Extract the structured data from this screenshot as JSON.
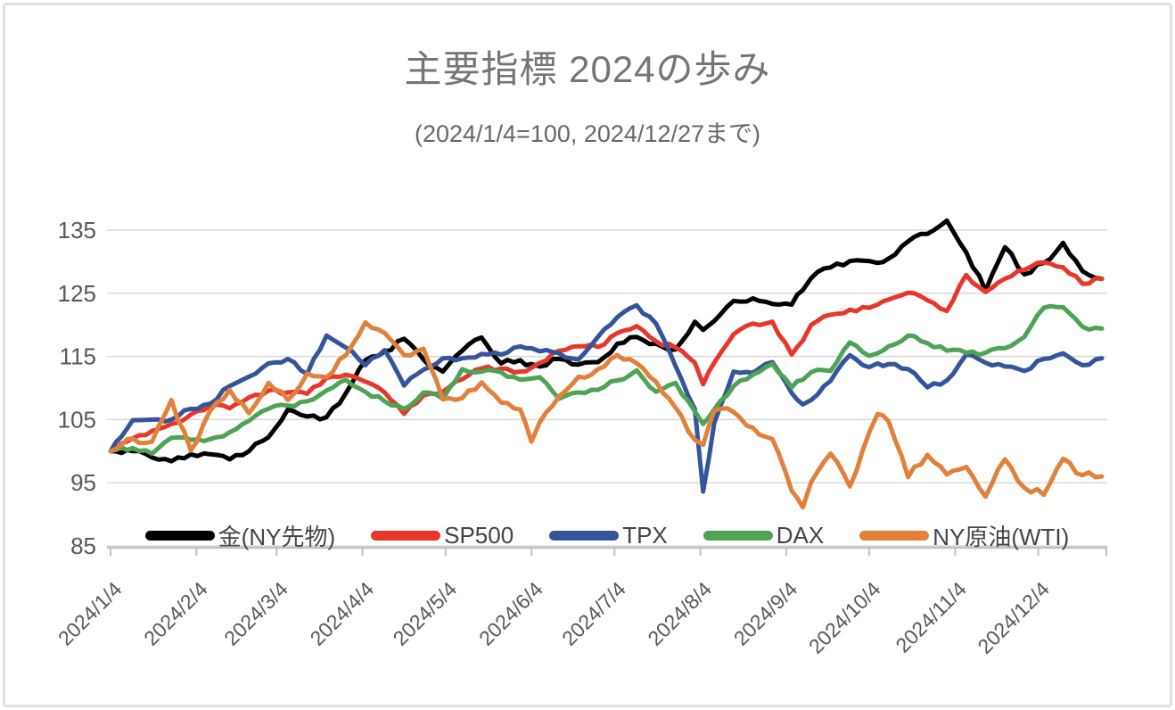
{
  "chart_data": {
    "type": "line",
    "title": "主要指標 2024の歩み",
    "subtitle": "(2024/1/4=100, 2024/12/27まで)",
    "grid": "horizontal",
    "legend_position": "bottom-inside",
    "y_axis": {
      "range": [
        85,
        135
      ],
      "ticks": [
        85,
        95,
        105,
        115,
        125,
        135
      ]
    },
    "x_axis": {
      "tick_labels": [
        "2024/1/4",
        "2024/2/4",
        "2024/3/4",
        "2024/4/4",
        "2024/5/4",
        "2024/6/4",
        "2024/7/4",
        "2024/8/4",
        "2024/9/4",
        "2024/10/4",
        "2024/11/4",
        "2024/12/4"
      ]
    },
    "dates": [
      "1/4",
      "1/12",
      "1/19",
      "1/26",
      "2/2",
      "2/9",
      "2/16",
      "2/23",
      "3/1",
      "3/8",
      "3/15",
      "3/22",
      "3/29",
      "4/5",
      "4/12",
      "4/19",
      "4/26",
      "5/3",
      "5/10",
      "5/17",
      "5/24",
      "5/31",
      "6/4",
      "6/7",
      "6/14",
      "6/21",
      "6/28",
      "7/5",
      "7/12",
      "7/19",
      "7/26",
      "8/2",
      "8/5",
      "8/9",
      "8/16",
      "8/23",
      "8/30",
      "9/6",
      "9/10",
      "9/13",
      "9/20",
      "9/27",
      "10/4",
      "10/7",
      "10/11",
      "10/18",
      "10/25",
      "11/1",
      "11/8",
      "11/15",
      "11/22",
      "11/29",
      "12/6",
      "12/13",
      "12/20",
      "12/27"
    ],
    "series": [
      {
        "name": "金(NY先物)",
        "color": "#000000",
        "values": [
          100,
          100,
          99,
          98.4,
          99.5,
          99.5,
          98.7,
          100,
          102.2,
          106.6,
          105.5,
          105.4,
          109.2,
          114.4,
          115.8,
          117.8,
          114.5,
          112.6,
          115.9,
          118,
          113.9,
          114.4,
          113.8,
          113.4,
          114.6,
          113.7,
          114.1,
          117,
          118.1,
          117,
          116.1,
          120.5,
          119.2,
          120.6,
          123.8,
          124.2,
          123.3,
          123.2,
          125.5,
          127.4,
          129.1,
          130.1,
          130.1,
          129.8,
          130.5,
          133.2,
          134.4,
          136.5,
          131.5,
          125.4,
          132.3,
          128,
          129.8,
          133,
          128.5,
          127.3
        ]
      },
      {
        "name": "SP500",
        "color": "#E8372A",
        "values": [
          100,
          102,
          103.2,
          104.3,
          105.8,
          107.2,
          106.8,
          108.5,
          109.6,
          109.3,
          109.1,
          111.6,
          112.1,
          111,
          109.3,
          105.9,
          108.8,
          109.4,
          111.4,
          113.1,
          113.1,
          112.6,
          113.2,
          114,
          115.9,
          116.6,
          116.5,
          118.7,
          119.8,
          117.4,
          116.4,
          114,
          110.6,
          114,
          118.5,
          120.2,
          120.5,
          115.3,
          117.5,
          120,
          121.6,
          122.4,
          122.7,
          123.2,
          124,
          125.1,
          123.9,
          122.2,
          127.9,
          125.2,
          127.3,
          128.7,
          129.9,
          129.1,
          126.5,
          127.3
        ]
      },
      {
        "name": "TPX",
        "color": "#35549B",
        "values": [
          100,
          104.9,
          105,
          105,
          106.7,
          107.5,
          110.3,
          111.8,
          113.9,
          114.6,
          112.2,
          118.3,
          116.4,
          113.6,
          116,
          110.4,
          112.9,
          114.7,
          114.7,
          115.4,
          115.3,
          116.6,
          116.3,
          115.8,
          115.5,
          114.5,
          118.1,
          121.2,
          123.1,
          120.2,
          113.5,
          106.7,
          93.6,
          104.4,
          112.6,
          112.4,
          114.1,
          109.2,
          107.4,
          108.1,
          111.1,
          115.2,
          113.3,
          113.9,
          113.8,
          113,
          110.1,
          111.2,
          115.3,
          114,
          113.4,
          112.7,
          114.6,
          115.5,
          113.6,
          114.7
        ]
      },
      {
        "name": "DAX",
        "color": "#4CA454",
        "values": [
          100,
          100.5,
          99.6,
          102.1,
          101.8,
          101.9,
          103,
          104.8,
          106.7,
          107.2,
          107.9,
          109.6,
          111.3,
          109.4,
          107.9,
          106.7,
          109.3,
          108.3,
          113,
          112.6,
          112.5,
          111.3,
          111.5,
          111.7,
          108.3,
          109.3,
          109.7,
          111.2,
          112.8,
          109.4,
          110.8,
          106.3,
          104.3,
          106.6,
          110.3,
          112.1,
          113.8,
          110.1,
          111.3,
          112.5,
          112.7,
          117.2,
          115.1,
          115.5,
          116.6,
          118.3,
          117.1,
          115.9,
          115.6,
          115.6,
          116.3,
          118.1,
          122.7,
          122.8,
          119.7,
          119.4
        ]
      },
      {
        "name": "NY原油(WTI)",
        "color": "#E2813C",
        "values": [
          100,
          102,
          101.5,
          108.1,
          100.1,
          106.4,
          109.7,
          106,
          110.8,
          108.1,
          112.3,
          111.7,
          115.2,
          120.4,
          118.7,
          115.2,
          116.2,
          108.2,
          108.4,
          110.9,
          107.7,
          106.6,
          101.5,
          104.6,
          108.7,
          111.8,
          113,
          115.2,
          113.9,
          111,
          106.9,
          101.8,
          101,
          106.4,
          106.2,
          103.7,
          101.9,
          93.7,
          91.1,
          95.1,
          99.6,
          94.4,
          103,
          105.9,
          104.7,
          95.9,
          99.4,
          96.3,
          97.5,
          92.8,
          98.7,
          94.2,
          93.1,
          98.8,
          96.2,
          96
        ]
      }
    ],
    "style": {
      "gridline_color": "#D9D9D9",
      "axis_line_color": "#BFBFBF",
      "tick_label_color": "#595959",
      "title_color": "#757575"
    }
  }
}
